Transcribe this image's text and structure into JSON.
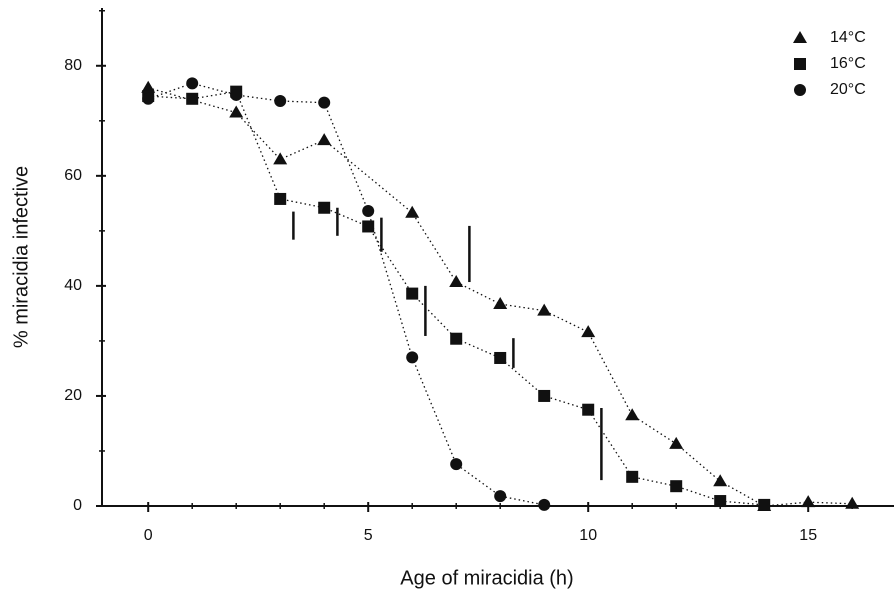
{
  "chart_data": {
    "type": "line",
    "title": null,
    "x_label": "Age of miracidia (h)",
    "y_label": "% miracidia infective",
    "xlim": [
      -1.05,
      16.95
    ],
    "ylim": [
      0,
      90.5
    ],
    "xticks": [
      0,
      5,
      10,
      15
    ],
    "yticks": [
      0,
      20,
      40,
      60,
      80
    ],
    "xminorticks": [
      1,
      2,
      3,
      4,
      6,
      7,
      8,
      9,
      11,
      12,
      13,
      14,
      16
    ],
    "yminorticks": [
      10,
      30,
      50,
      70,
      90
    ],
    "legend": "top-right",
    "line_style": "dotted",
    "series": [
      {
        "name": "14°C",
        "marker": "triangle",
        "color": "#111111",
        "x": [
          0,
          2,
          3,
          4,
          6,
          7,
          8,
          9,
          10,
          11,
          12,
          13,
          14,
          15,
          16
        ],
        "values": [
          76,
          71.5,
          63,
          66.5,
          53.3,
          40.7,
          36.7,
          35.5,
          31.6,
          16.5,
          11.3,
          4.5,
          0,
          0.7,
          0.4
        ]
      },
      {
        "name": "16°C",
        "marker": "square",
        "color": "#111111",
        "x": [
          0,
          1,
          2,
          3,
          4,
          5,
          6,
          7,
          8,
          9,
          10,
          11,
          12,
          13,
          14
        ],
        "values": [
          74.5,
          74,
          75.3,
          55.8,
          54.2,
          50.8,
          38.6,
          30.4,
          26.9,
          20,
          17.5,
          5.3,
          3.6,
          0.9,
          0.2
        ]
      },
      {
        "name": "20°C",
        "marker": "circle",
        "color": "#111111",
        "x": [
          0,
          1,
          2,
          3,
          4,
          5,
          6,
          7,
          8,
          9
        ],
        "values": [
          74,
          76.8,
          74.7,
          73.6,
          73.3,
          53.6,
          27,
          7.6,
          1.8,
          0.2
        ]
      }
    ],
    "error_bars": {
      "x": [
        3.3,
        4.3,
        5.3,
        6.3,
        7.3,
        8.3,
        10.3
      ],
      "low": [
        48.4,
        49.1,
        46.2,
        30.9,
        40.7,
        25.1,
        4.7
      ],
      "high": [
        53.5,
        54.2,
        52.4,
        40,
        50.9,
        30.5,
        17.8
      ]
    }
  }
}
